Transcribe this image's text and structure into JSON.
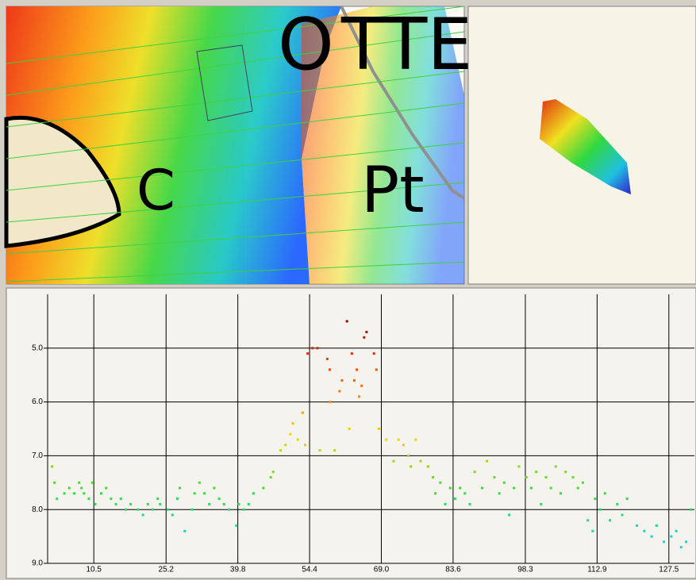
{
  "map_view": {
    "labels": [
      "O",
      "TTE",
      "C",
      "Pt"
    ]
  },
  "chart_data": {
    "type": "scatter",
    "x": [
      2.0,
      2.5,
      3.0,
      4.5,
      5.5,
      6.5,
      7.5,
      8.0,
      8.5,
      9.5,
      10.2,
      10.8,
      12.0,
      13.0,
      14.0,
      15.0,
      16.0,
      17.0,
      18.0,
      19.5,
      20.5,
      21.5,
      22.5,
      23.5,
      24.0,
      25.5,
      26.5,
      27.5,
      28.0,
      29.0,
      30.5,
      31.0,
      32.0,
      33.0,
      34.0,
      35.0,
      36.0,
      37.0,
      38.0,
      39.5,
      40.0,
      41.0,
      42.0,
      43.0,
      45.0,
      46.5,
      47.0,
      48.5,
      49.5,
      50.5,
      51.0,
      52.0,
      53.0,
      53.5,
      54.0,
      55.0,
      56.0,
      56.5,
      58.0,
      58.5,
      58.6,
      59.5,
      60.5,
      61.0,
      62.0,
      62.5,
      63.0,
      63.5,
      64.0,
      64.5,
      65.0,
      65.5,
      66.0,
      67.5,
      68.0,
      68.5,
      70.0,
      71.5,
      72.5,
      73.5,
      74.5,
      75.0,
      76.0,
      77.0,
      78.5,
      79.5,
      80.0,
      81.0,
      82.0,
      83.0,
      84.0,
      85.0,
      86.0,
      87.0,
      88.0,
      89.5,
      90.5,
      92.0,
      93.0,
      94.0,
      95.0,
      96.0,
      97.0,
      98.5,
      99.5,
      100.5,
      101.5,
      102.5,
      103.5,
      104.5,
      105.5,
      106.5,
      108.0,
      109.0,
      110.0,
      111.0,
      112.0,
      112.5,
      113.5,
      114.5,
      115.5,
      117.0,
      118.0,
      119.0,
      121.0,
      122.5,
      124.0,
      125.0,
      126.5,
      128.0,
      129.0,
      130.0,
      131.0,
      132.0
    ],
    "values": [
      7.2,
      7.5,
      7.8,
      7.7,
      7.6,
      7.7,
      7.5,
      7.6,
      7.7,
      7.8,
      7.5,
      7.9,
      7.7,
      7.6,
      7.8,
      7.9,
      7.8,
      8.0,
      7.9,
      8.0,
      8.1,
      7.9,
      8.0,
      7.8,
      7.9,
      8.0,
      8.1,
      7.8,
      7.6,
      8.4,
      8.0,
      7.7,
      7.5,
      7.7,
      7.9,
      7.6,
      7.8,
      7.9,
      8.0,
      8.3,
      7.9,
      8.0,
      7.9,
      7.7,
      7.6,
      7.4,
      7.3,
      6.9,
      6.8,
      6.6,
      6.4,
      6.7,
      6.2,
      6.8,
      5.1,
      5.0,
      5.0,
      6.9,
      5.2,
      5.4,
      6.0,
      6.9,
      5.8,
      5.6,
      4.5,
      6.5,
      5.1,
      5.6,
      5.4,
      5.9,
      5.7,
      4.8,
      4.7,
      5.1,
      5.4,
      6.5,
      6.7,
      7.1,
      6.7,
      6.8,
      7.0,
      7.2,
      6.7,
      7.1,
      7.2,
      7.4,
      7.7,
      7.5,
      7.9,
      7.6,
      7.8,
      7.6,
      7.7,
      7.9,
      7.3,
      7.6,
      7.1,
      7.4,
      7.7,
      7.5,
      8.1,
      7.6,
      7.2,
      7.4,
      7.6,
      7.3,
      7.9,
      7.4,
      7.6,
      7.2,
      7.7,
      7.3,
      7.4,
      7.6,
      7.5,
      8.2,
      8.4,
      7.8,
      8.0,
      7.7,
      8.2,
      7.9,
      8.1,
      7.8,
      8.3,
      8.4,
      8.5,
      8.3,
      8.6,
      8.5,
      8.4,
      8.7,
      8.6,
      8.0
    ],
    "colormap": [
      "#a00000",
      "#ff5a00",
      "#ffd000",
      "#33dd33",
      "#00e0e0"
    ],
    "color_range": [
      4.5,
      8.7
    ],
    "xlim": [
      1.1,
      132.7
    ],
    "ylim": [
      9.0,
      4.0
    ],
    "xticks": [
      10.5,
      25.2,
      39.8,
      54.4,
      {
        "value": 69.0,
        "label": "69.0"
      },
      83.6,
      98.3,
      112.9,
      127.5
    ],
    "yticks": [
      {
        "value": 5.0,
        "label": "5.0"
      },
      {
        "value": 6.0,
        "label": "6.0"
      },
      {
        "value": 7.0,
        "label": "7.0"
      },
      {
        "value": 8.0,
        "label": "8.0"
      },
      {
        "value": 9.0,
        "label": "9.0"
      }
    ],
    "grid": true
  }
}
